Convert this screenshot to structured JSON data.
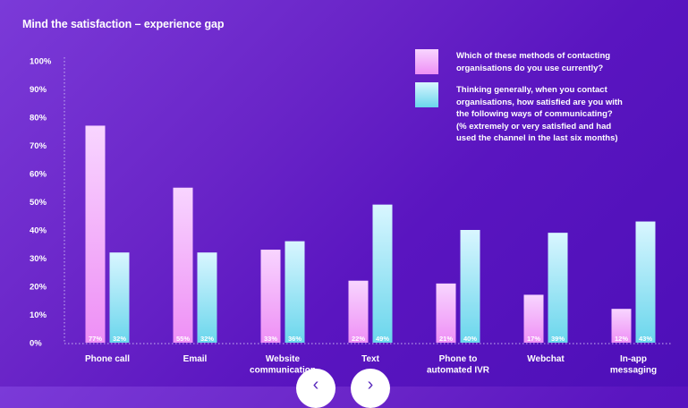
{
  "header": {
    "title": "Mind the satisfaction – experience gap"
  },
  "legend": [
    {
      "color_top": "#f8d5ff",
      "color_bottom": "#ee8ff5",
      "text": "Which of these methods of contacting\norganisations do you use currently?"
    },
    {
      "color_top": "#d9f6ff",
      "color_bottom": "#6ad6ec",
      "text": "Thinking generally, when you contact\norganisations, how satisfied are you with\nthe following ways of communicating?\n(% extremely or very satisfied and had\nused the channel in the last six months)"
    }
  ],
  "nav": {
    "prev_icon": "chevron-left-icon",
    "next_icon": "chevron-right-icon",
    "prev_glyph": "‹",
    "next_glyph": "›"
  },
  "chart_data": {
    "type": "bar",
    "title": "Mind the satisfaction – experience gap",
    "ylim": [
      0,
      100
    ],
    "y_ticks": [
      "0%",
      "10%",
      "20%",
      "30%",
      "40%",
      "50%",
      "60%",
      "70%",
      "80%",
      "90%",
      "100%"
    ],
    "categories": [
      "Phone call",
      "Email",
      "Website\ncommunication",
      "Text",
      "Phone to\nautomated IVR",
      "Webchat",
      "In-app\nmessaging"
    ],
    "series": [
      {
        "name": "Which of these methods of contacting organisations do you use currently?",
        "color_top": "#f8d5ff",
        "color_bottom": "#ee8ff5",
        "values": [
          77,
          55,
          33,
          22,
          21,
          17,
          12
        ],
        "labels": [
          "77%",
          "55%",
          "33%",
          "22%",
          "21%",
          "17%",
          "12%"
        ]
      },
      {
        "name": "Thinking generally, when you contact organisations, how satisfied are you with the following ways of communicating? (% extremely or very satisfied and had used the channel in the last six months)",
        "color_top": "#d9f6ff",
        "color_bottom": "#6ad6ec",
        "values": [
          32,
          32,
          36,
          49,
          40,
          39,
          43
        ],
        "labels": [
          "32%",
          "32%",
          "36%",
          "49%",
          "40%",
          "39%",
          "43%"
        ]
      }
    ],
    "grid": false,
    "legend_position": "top-right"
  }
}
